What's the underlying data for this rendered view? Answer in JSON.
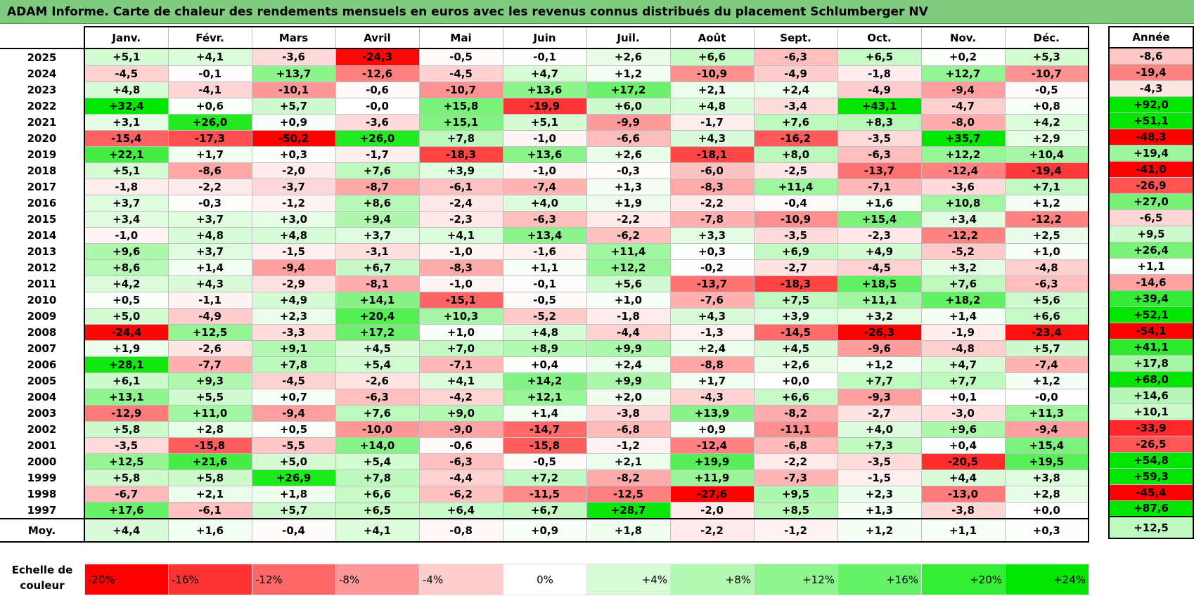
{
  "title": "ADAM Informe. Carte de chaleur des rendements mensuels en euros avec les revenus connus distribués du placement Schlumberger NV",
  "chart_data": {
    "type": "heatmap",
    "columns": [
      "Janv.",
      "Févr.",
      "Mars",
      "Avril",
      "Mai",
      "Juin",
      "Juil.",
      "Août",
      "Sept.",
      "Oct.",
      "Nov.",
      "Déc."
    ],
    "annual_header": "Année",
    "average_label": "Moy.",
    "rows": [
      {
        "year": "2025",
        "values": [
          "+5,1",
          "+4,1",
          "-3,6",
          "-24,3",
          "-0,5",
          "-0,1",
          "+2,6",
          "+6,6",
          "-6,3",
          "+6,5",
          "+0,2",
          "+5,3"
        ],
        "annual": "-8,6"
      },
      {
        "year": "2024",
        "values": [
          "-4,5",
          "-0,1",
          "+13,7",
          "-12,6",
          "-4,5",
          "+4,7",
          "+1,2",
          "-10,9",
          "-4,9",
          "-1,8",
          "+12,7",
          "-10,7"
        ],
        "annual": "-19,4"
      },
      {
        "year": "2023",
        "values": [
          "+4,8",
          "-4,1",
          "-10,1",
          "-0,6",
          "-10,7",
          "+13,6",
          "+17,2",
          "+2,1",
          "+2,4",
          "-4,9",
          "-9,4",
          "-0,5"
        ],
        "annual": "-4,3"
      },
      {
        "year": "2022",
        "values": [
          "+32,4",
          "+0,6",
          "+5,7",
          "-0,0",
          "+15,8",
          "-19,9",
          "+6,0",
          "+4,8",
          "-3,4",
          "+43,1",
          "-4,7",
          "+0,8"
        ],
        "annual": "+92,0"
      },
      {
        "year": "2021",
        "values": [
          "+3,1",
          "+26,0",
          "+0,9",
          "-3,6",
          "+15,1",
          "+5,1",
          "-9,9",
          "-1,7",
          "+7,6",
          "+8,3",
          "-8,0",
          "+4,2"
        ],
        "annual": "+51,1"
      },
      {
        "year": "2020",
        "values": [
          "-15,4",
          "-17,3",
          "-50,2",
          "+26,0",
          "+7,8",
          "-1,0",
          "-6,6",
          "+4,3",
          "-16,2",
          "-3,5",
          "+35,7",
          "+2,9"
        ],
        "annual": "-48,3"
      },
      {
        "year": "2019",
        "values": [
          "+22,1",
          "+1,7",
          "+0,3",
          "-1,7",
          "-18,3",
          "+13,6",
          "+2,6",
          "-18,1",
          "+8,0",
          "-6,3",
          "+12,2",
          "+10,4"
        ],
        "annual": "+19,4"
      },
      {
        "year": "2018",
        "values": [
          "+5,1",
          "-8,6",
          "-2,0",
          "+7,6",
          "+3,9",
          "-1,0",
          "-0,3",
          "-6,0",
          "-2,5",
          "-13,7",
          "-12,4",
          "-19,4"
        ],
        "annual": "-41,0"
      },
      {
        "year": "2017",
        "values": [
          "-1,8",
          "-2,2",
          "-3,7",
          "-8,7",
          "-6,1",
          "-7,4",
          "+1,3",
          "-8,3",
          "+11,4",
          "-7,1",
          "-3,6",
          "+7,1"
        ],
        "annual": "-26,9"
      },
      {
        "year": "2016",
        "values": [
          "+3,7",
          "-0,3",
          "-1,2",
          "+8,6",
          "-2,4",
          "+4,0",
          "+1,9",
          "-2,2",
          "-0,4",
          "+1,6",
          "+10,8",
          "+1,2"
        ],
        "annual": "+27,0"
      },
      {
        "year": "2015",
        "values": [
          "+3,4",
          "+3,7",
          "+3,0",
          "+9,4",
          "-2,3",
          "-6,3",
          "-2,2",
          "-7,8",
          "-10,9",
          "+15,4",
          "+3,4",
          "-12,2"
        ],
        "annual": "-6,5"
      },
      {
        "year": "2014",
        "values": [
          "-1,0",
          "+4,8",
          "+4,8",
          "+3,7",
          "+4,1",
          "+13,4",
          "-6,2",
          "+3,3",
          "-3,5",
          "-2,3",
          "-12,2",
          "+2,5"
        ],
        "annual": "+9,5"
      },
      {
        "year": "2013",
        "values": [
          "+9,6",
          "+3,7",
          "-1,5",
          "-3,1",
          "-1,0",
          "-1,6",
          "+11,4",
          "+0,3",
          "+6,9",
          "+4,9",
          "-5,2",
          "+1,0"
        ],
        "annual": "+26,4"
      },
      {
        "year": "2012",
        "values": [
          "+8,6",
          "+1,4",
          "-9,4",
          "+6,7",
          "-8,3",
          "+1,1",
          "+12,2",
          "-0,2",
          "-2,7",
          "-4,5",
          "+3,2",
          "-4,8"
        ],
        "annual": "+1,1"
      },
      {
        "year": "2011",
        "values": [
          "+4,2",
          "+4,3",
          "-2,9",
          "-8,1",
          "-1,0",
          "-0,1",
          "+5,6",
          "-13,7",
          "-18,3",
          "+18,5",
          "+7,6",
          "-6,3"
        ],
        "annual": "-14,6"
      },
      {
        "year": "2010",
        "values": [
          "+0,5",
          "-1,1",
          "+4,9",
          "+14,1",
          "-15,1",
          "-0,5",
          "+1,0",
          "-7,6",
          "+7,5",
          "+11,1",
          "+18,2",
          "+5,6"
        ],
        "annual": "+39,4"
      },
      {
        "year": "2009",
        "values": [
          "+5,0",
          "-4,9",
          "+2,3",
          "+20,4",
          "+10,3",
          "-5,2",
          "-1,8",
          "+4,3",
          "+3,9",
          "+3,2",
          "+1,4",
          "+6,6"
        ],
        "annual": "+52,1"
      },
      {
        "year": "2008",
        "values": [
          "-24,4",
          "+12,5",
          "-3,3",
          "+17,2",
          "+1,0",
          "+4,8",
          "-4,4",
          "-1,3",
          "-14,5",
          "-26,3",
          "-1,9",
          "-23,4"
        ],
        "annual": "-54,1"
      },
      {
        "year": "2007",
        "values": [
          "+1,9",
          "-2,6",
          "+9,1",
          "+4,5",
          "+7,0",
          "+8,9",
          "+9,9",
          "+2,4",
          "+4,5",
          "-9,6",
          "-4,8",
          "+5,7"
        ],
        "annual": "+41,1"
      },
      {
        "year": "2006",
        "values": [
          "+28,1",
          "-7,7",
          "+7,8",
          "+5,4",
          "-7,1",
          "+0,4",
          "+2,4",
          "-8,8",
          "+2,6",
          "+1,2",
          "+4,7",
          "-7,4"
        ],
        "annual": "+17,8"
      },
      {
        "year": "2005",
        "values": [
          "+6,1",
          "+9,3",
          "-4,5",
          "-2,6",
          "+4,1",
          "+14,2",
          "+9,9",
          "+1,7",
          "+0,0",
          "+7,7",
          "+7,7",
          "+1,2"
        ],
        "annual": "+68,0"
      },
      {
        "year": "2004",
        "values": [
          "+13,1",
          "+5,5",
          "+0,7",
          "-6,3",
          "-4,2",
          "+12,1",
          "+2,0",
          "-4,3",
          "+6,6",
          "-9,3",
          "+0,1",
          "-0,0"
        ],
        "annual": "+14,6"
      },
      {
        "year": "2003",
        "values": [
          "-12,9",
          "+11,0",
          "-9,4",
          "+7,6",
          "+9,0",
          "+1,4",
          "-3,8",
          "+13,9",
          "-8,2",
          "-2,7",
          "-3,0",
          "+11,3"
        ],
        "annual": "+10,1"
      },
      {
        "year": "2002",
        "values": [
          "+5,8",
          "+2,8",
          "+0,5",
          "-10,0",
          "-9,0",
          "-14,7",
          "-6,8",
          "+0,9",
          "-11,1",
          "+4,0",
          "+9,6",
          "-9,4"
        ],
        "annual": "-33,9"
      },
      {
        "year": "2001",
        "values": [
          "-3,5",
          "-15,8",
          "-5,5",
          "+14,0",
          "-0,6",
          "-15,8",
          "-1,2",
          "-12,4",
          "-6,8",
          "+7,3",
          "+0,4",
          "+15,4"
        ],
        "annual": "-26,5"
      },
      {
        "year": "2000",
        "values": [
          "+12,5",
          "+21,6",
          "+5,0",
          "+5,4",
          "-6,3",
          "-0,5",
          "+2,1",
          "+19,9",
          "-2,2",
          "-3,5",
          "-20,5",
          "+19,5"
        ],
        "annual": "+54,8"
      },
      {
        "year": "1999",
        "values": [
          "+5,8",
          "+5,8",
          "+26,9",
          "+7,8",
          "-4,4",
          "+7,2",
          "-8,2",
          "+11,9",
          "-7,3",
          "-1,5",
          "+4,4",
          "+3,8"
        ],
        "annual": "+59,3"
      },
      {
        "year": "1998",
        "values": [
          "-6,7",
          "+2,1",
          "+1,8",
          "+6,6",
          "-6,2",
          "-11,5",
          "-12,5",
          "-27,6",
          "+9,5",
          "+2,3",
          "-13,0",
          "+2,8"
        ],
        "annual": "-45,4"
      },
      {
        "year": "1997",
        "values": [
          "+17,6",
          "-6,1",
          "+5,7",
          "+6,5",
          "+6,4",
          "+6,7",
          "+28,7",
          "-2,0",
          "+8,5",
          "+1,3",
          "-3,8",
          "+0,0"
        ],
        "annual": "+87,6"
      }
    ],
    "averages": [
      "+4,4",
      "+1,6",
      "-0,4",
      "+4,1",
      "-0,8",
      "+0,9",
      "+1,8",
      "-2,2",
      "-1,2",
      "+1,2",
      "+1,1",
      "+0,3"
    ],
    "average_annual": "+12,5",
    "color_scale": {
      "label": "Echelle de couleur",
      "stops": [
        {
          "label": "-20%",
          "value": -20,
          "color": "#ff0000"
        },
        {
          "label": "-16%",
          "value": -16,
          "color": "#ff3333"
        },
        {
          "label": "-12%",
          "value": -12,
          "color": "#ff6666"
        },
        {
          "label": "-8%",
          "value": -8,
          "color": "#ff9999"
        },
        {
          "label": "-4%",
          "value": -4,
          "color": "#ffcccc"
        },
        {
          "label": "0%",
          "value": 0,
          "color": "#ffffff"
        },
        {
          "label": "+4%",
          "value": 4,
          "color": "#d6fcd6"
        },
        {
          "label": "+8%",
          "value": 8,
          "color": "#b3f9b3"
        },
        {
          "label": "+12%",
          "value": 12,
          "color": "#8ff68f"
        },
        {
          "label": "+16%",
          "value": 16,
          "color": "#66f266"
        },
        {
          "label": "+20%",
          "value": 20,
          "color": "#33ee33"
        },
        {
          "label": "+24%",
          "value": 24,
          "color": "#00e600"
        }
      ]
    }
  }
}
